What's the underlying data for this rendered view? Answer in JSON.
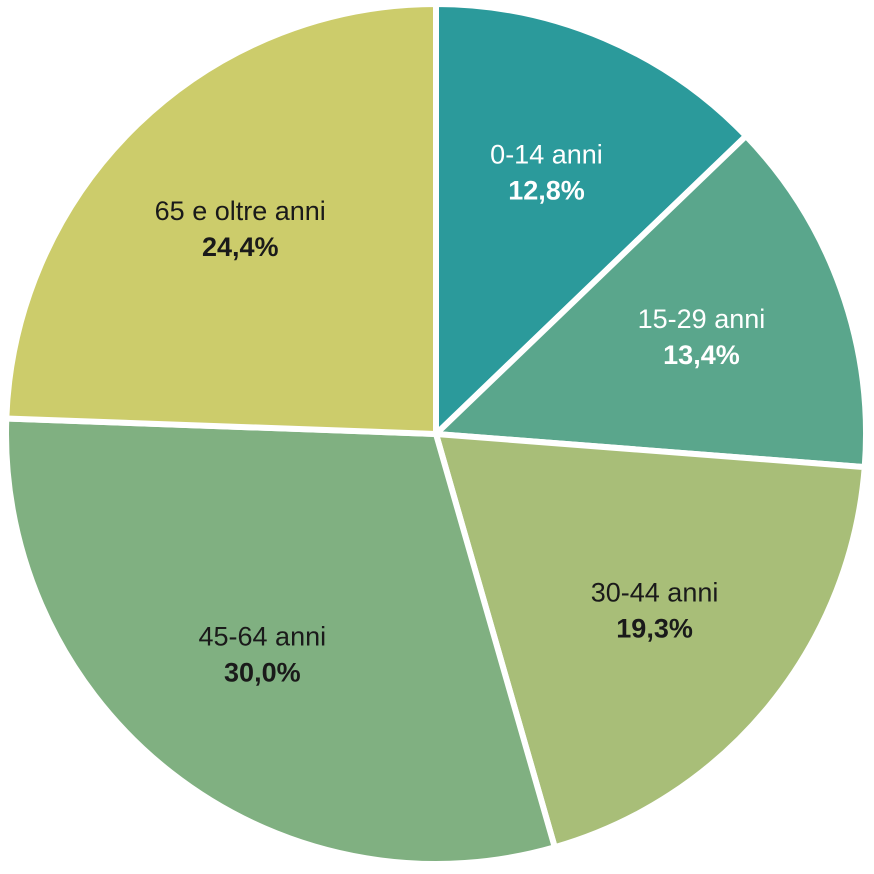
{
  "chart_data": {
    "type": "pie",
    "categories": [
      "0-14 anni",
      "15-29 anni",
      "30-44 anni",
      "45-64 anni",
      "65 e oltre anni"
    ],
    "values": [
      12.8,
      13.4,
      19.3,
      30.0,
      24.4
    ],
    "value_labels": [
      "12,8%",
      "13,4%",
      "19,3%",
      "30,0%",
      "24,4%"
    ],
    "colors": [
      "#2b9a9b",
      "#5aa68c",
      "#a8be78",
      "#80b081",
      "#cccc6b"
    ],
    "label_colors": [
      "#ffffff",
      "#ffffff",
      "#1a1a1a",
      "#1a1a1a",
      "#1a1a1a"
    ]
  }
}
